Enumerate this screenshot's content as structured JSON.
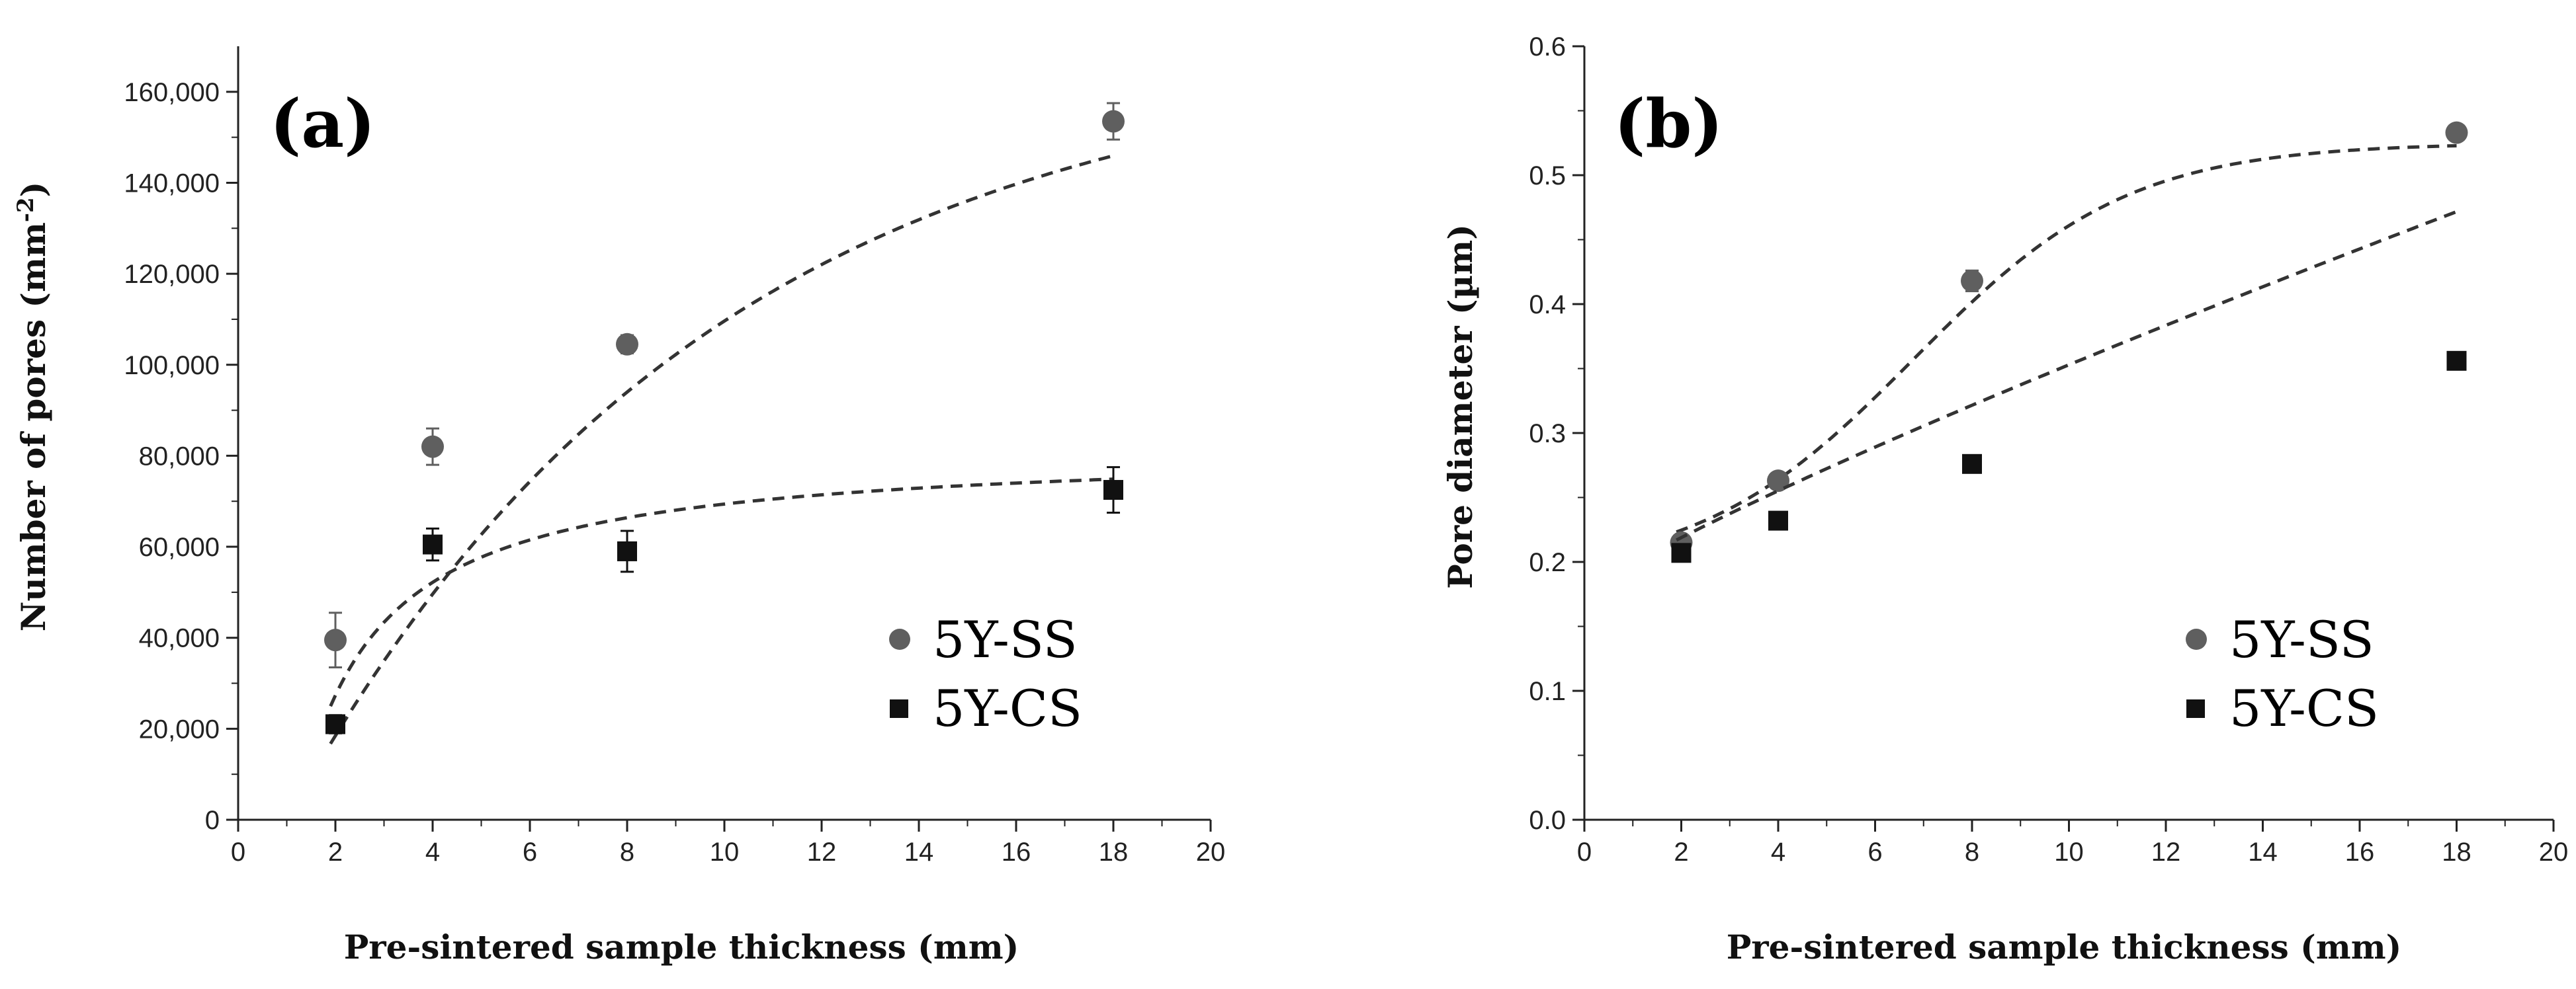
{
  "chart_data": [
    {
      "type": "scatter",
      "panel_label": "(a)",
      "xlabel": "Pre-sintered sample thickness (mm)",
      "ylabel": "Number of pores (mm",
      "ylabel_sup": "-2",
      "ylabel_close": ")",
      "xlim": [
        0,
        20
      ],
      "ylim": [
        0,
        170000
      ],
      "xticks": [
        0,
        2,
        4,
        6,
        8,
        10,
        12,
        14,
        16,
        18,
        20
      ],
      "yticks": [
        0,
        20000,
        40000,
        60000,
        80000,
        100000,
        120000,
        140000,
        160000
      ],
      "ytick_labels": [
        "0",
        "20,000",
        "40,000",
        "60,000",
        "80,000",
        "100,000",
        "120,000",
        "140,000",
        "160,000"
      ],
      "series": [
        {
          "name": "5Y-SS",
          "marker": "circle",
          "color": "#5f5f5f",
          "x": [
            2,
            4,
            8,
            18
          ],
          "y": [
            39500,
            82000,
            104500,
            153500
          ],
          "err": [
            6000,
            4000,
            2000,
            4000
          ],
          "fit": {
            "kind": "exp",
            "a": 170000,
            "b": 0.115,
            "c": 1.0
          }
        },
        {
          "name": "5Y-CS",
          "marker": "square",
          "color": "#111111",
          "x": [
            2,
            4,
            8,
            18
          ],
          "y": [
            21000,
            60500,
            59000,
            72500
          ],
          "err": [
            2000,
            3500,
            4500,
            5000
          ],
          "fit": {
            "kind": "hyper",
            "a": 82000,
            "k": 1.6,
            "x0": 1.2
          }
        }
      ]
    },
    {
      "type": "scatter",
      "panel_label": "(b)",
      "xlabel": "Pre-sintered sample thickness (mm)",
      "ylabel": "Pore diameter (µm)",
      "ylabel_sup": "",
      "ylabel_close": "",
      "xlim": [
        0,
        20
      ],
      "ylim": [
        0,
        0.6
      ],
      "xticks": [
        0,
        2,
        4,
        6,
        8,
        10,
        12,
        14,
        16,
        18,
        20
      ],
      "yticks": [
        0.0,
        0.1,
        0.2,
        0.3,
        0.4,
        0.5,
        0.6
      ],
      "ytick_labels": [
        "0.0",
        "0.1",
        "0.2",
        "0.3",
        "0.4",
        "0.5",
        "0.6"
      ],
      "series": [
        {
          "name": "5Y-SS",
          "marker": "circle",
          "color": "#5f5f5f",
          "x": [
            2,
            4,
            8,
            18
          ],
          "y": [
            0.215,
            0.263,
            0.418,
            0.533
          ],
          "err": [
            0.006,
            0.006,
            0.008,
            0.006
          ],
          "fit": {
            "kind": "sigmoid",
            "base": 0.19,
            "amp": 0.335,
            "k": 0.45,
            "x0": 6.8
          }
        },
        {
          "name": "5Y-CS",
          "marker": "square",
          "color": "#111111",
          "x": [
            2,
            4,
            8,
            18
          ],
          "y": [
            0.207,
            0.232,
            0.276,
            0.356
          ],
          "err": [
            0.004,
            0.004,
            0.006,
            0.005
          ],
          "fit": {
            "kind": "linearish",
            "a": 0.175,
            "b": 0.024,
            "p": 0.87
          }
        }
      ]
    }
  ]
}
